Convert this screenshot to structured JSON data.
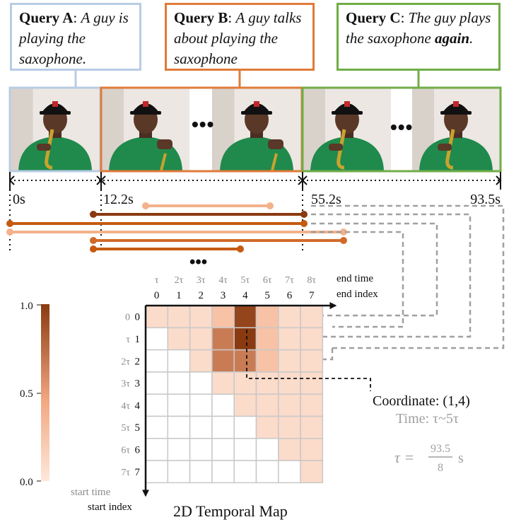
{
  "queries": [
    {
      "name": "Query A",
      "sep": ": ",
      "text_before": "A guy is playing the saxophone.",
      "emph": "",
      "text_after": "",
      "color": "#b8cce4"
    },
    {
      "name": "Query B",
      "sep": ": ",
      "text_before": "A guy talks about playing the saxophone",
      "emph": "",
      "text_after": "",
      "color": "#e07b39"
    },
    {
      "name": "Query C",
      "sep": ": ",
      "text_before": "The guy plays the saxophone ",
      "emph": "again",
      "text_after": ".",
      "color": "#70ad47"
    }
  ],
  "ellipsis": "•••",
  "timeline": {
    "t0": "0s",
    "t1": "12.2s",
    "t2": "55.2s",
    "t3": "93.5s"
  },
  "map": {
    "size": 8,
    "top_time_labels": [
      "τ",
      "2τ",
      "3τ",
      "4τ",
      "5τ",
      "6τ",
      "7τ",
      "8τ"
    ],
    "top_index_labels": [
      "0",
      "1",
      "2",
      "3",
      "4",
      "5",
      "6",
      "7"
    ],
    "left_time_labels": [
      "0",
      "τ",
      "2τ",
      "3τ",
      "4τ",
      "5τ",
      "6τ",
      "7τ"
    ],
    "left_index_labels": [
      "0",
      "1",
      "2",
      "3",
      "4",
      "5",
      "6",
      "7"
    ],
    "end_time_label": "end time",
    "end_index_label": "end index",
    "start_time_label": "start time",
    "start_index_label": "start index",
    "title": "2D Temporal Map",
    "scores": [
      [
        0.1,
        0.1,
        0.1,
        0.3,
        0.95,
        0.3,
        0.1,
        0.1
      ],
      [
        0,
        0.1,
        0.1,
        0.7,
        1.0,
        0.3,
        0.1,
        0.1
      ],
      [
        0,
        0,
        0.1,
        0.7,
        0.7,
        0.3,
        0.1,
        0.1
      ],
      [
        0,
        0,
        0,
        0.1,
        0.1,
        0.1,
        0.1,
        0.1
      ],
      [
        0,
        0,
        0,
        0,
        0.1,
        0.1,
        0.1,
        0.1
      ],
      [
        0,
        0,
        0,
        0,
        0,
        0.1,
        0.1,
        0.1
      ],
      [
        0,
        0,
        0,
        0,
        0,
        0,
        0.1,
        0.1
      ],
      [
        0,
        0,
        0,
        0,
        0,
        0,
        0,
        0.1
      ]
    ]
  },
  "colorbar": {
    "max_label": "1.0",
    "mid_label": "0.5",
    "min_label": "0.0",
    "low_color": "#fde8dc",
    "high_color": "#8a3a10"
  },
  "annotation": {
    "coordinate": "Coordinate: (1,4)",
    "time": "Time: τ~5τ",
    "tau_lhs": "τ =",
    "tau_num": "93.5",
    "tau_den": "8",
    "tau_unit": "s"
  }
}
